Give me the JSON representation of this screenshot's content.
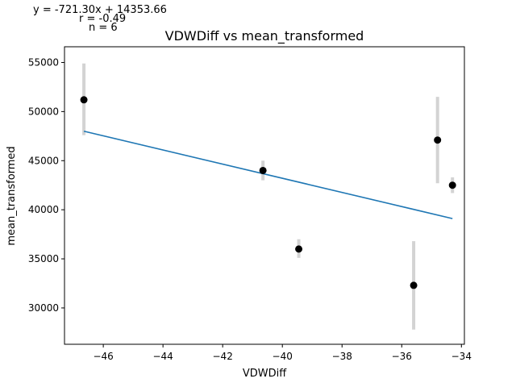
{
  "chart_data": {
    "type": "scatter",
    "title": "VDWDiff vs mean_transformed",
    "xlabel": "VDWDiff",
    "ylabel": "mean_transformed",
    "xlim": [
      -47.3,
      -33.9
    ],
    "ylim": [
      26300,
      56600
    ],
    "xticks": [
      -46,
      -44,
      -42,
      -40,
      -38,
      -36,
      -34
    ],
    "yticks": [
      30000,
      35000,
      40000,
      45000,
      50000,
      55000
    ],
    "xtick_labels": [
      "−46",
      "−44",
      "−42",
      "−40",
      "−38",
      "−36",
      "−34"
    ],
    "ytick_labels": [
      "30000",
      "35000",
      "40000",
      "45000",
      "50000",
      "55000"
    ],
    "grid": false,
    "points": [
      {
        "x": -46.65,
        "y": 51200,
        "err_low": 47600,
        "err_high": 54900
      },
      {
        "x": -40.65,
        "y": 44000,
        "err_low": 43000,
        "err_high": 45000
      },
      {
        "x": -39.45,
        "y": 36000,
        "err_low": 35100,
        "err_high": 37000
      },
      {
        "x": -35.6,
        "y": 32300,
        "err_low": 27800,
        "err_high": 36800
      },
      {
        "x": -34.8,
        "y": 47100,
        "err_low": 42700,
        "err_high": 51500
      },
      {
        "x": -34.3,
        "y": 42500,
        "err_low": 41700,
        "err_high": 43300
      }
    ],
    "fit_line": {
      "x": [
        -46.65,
        -34.3
      ],
      "y": [
        48000,
        39100
      ],
      "color": "#1f77b4"
    },
    "point_color": "#000000",
    "errorbar_color": "#d3d3d3",
    "annotations": {
      "equation": "y = -721.30x + 14353.66",
      "r": "r = -0.49",
      "n": "n = 6"
    }
  }
}
